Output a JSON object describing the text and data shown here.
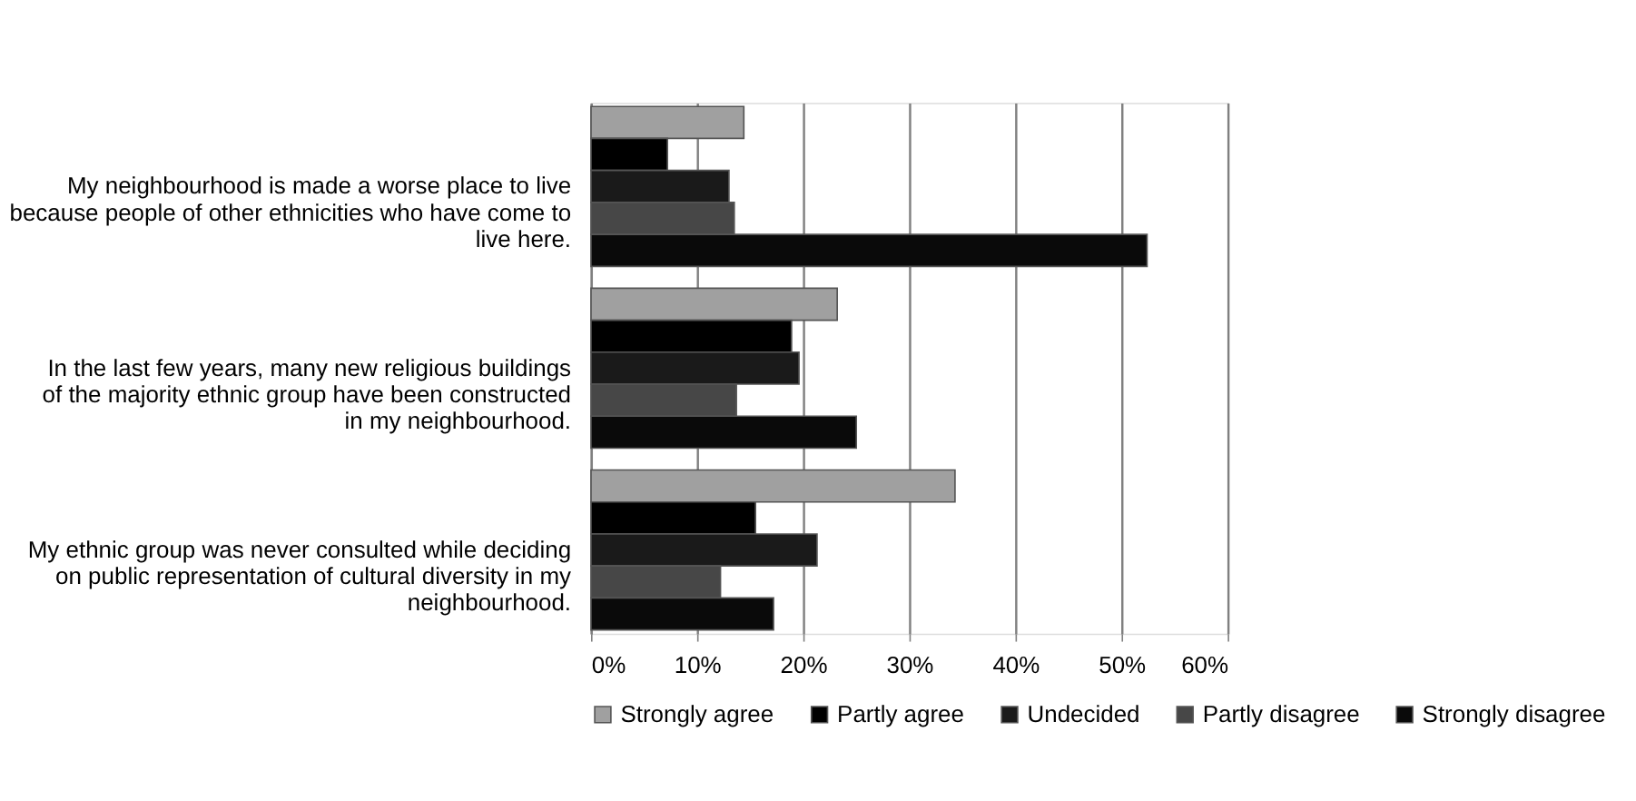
{
  "chart_data": {
    "type": "bar",
    "orientation": "horizontal",
    "categories": [
      "My neighbourhood is made a worse place to live because people of other ethnicities who have come to live here.",
      "In the last few years, many new religious buildings of the majority ethnic group have been constructed in my neighbourhood.",
      "My ethnic group was never consulted while deciding on public representation of cultural diversity in my neighbourhood."
    ],
    "series": [
      {
        "name": "Strongly agree",
        "color": "#a0a0a0",
        "values": [
          14.4,
          23.2,
          34.3
        ]
      },
      {
        "name": "Partly agree",
        "color": "#000000",
        "values": [
          7.2,
          18.9,
          15.5
        ]
      },
      {
        "name": "Undecided",
        "color": "#1a1a1a",
        "values": [
          13.0,
          19.6,
          21.3
        ]
      },
      {
        "name": "Partly disagree",
        "color": "#474747",
        "values": [
          13.5,
          13.7,
          12.2
        ]
      },
      {
        "name": "Strongly disagree",
        "color": "#0a0a0a",
        "values": [
          52.4,
          25.0,
          17.2
        ]
      }
    ],
    "xlim": [
      0,
      60
    ],
    "xticks": [
      {
        "value": 0,
        "label": "0%"
      },
      {
        "value": 10,
        "label": "10%"
      },
      {
        "value": 20,
        "label": "20%"
      },
      {
        "value": 30,
        "label": "30%"
      },
      {
        "value": 40,
        "label": "40%"
      },
      {
        "value": 50,
        "label": "50%"
      },
      {
        "value": 60,
        "label": "60%"
      }
    ],
    "grid": "x",
    "legend": "bottom"
  }
}
